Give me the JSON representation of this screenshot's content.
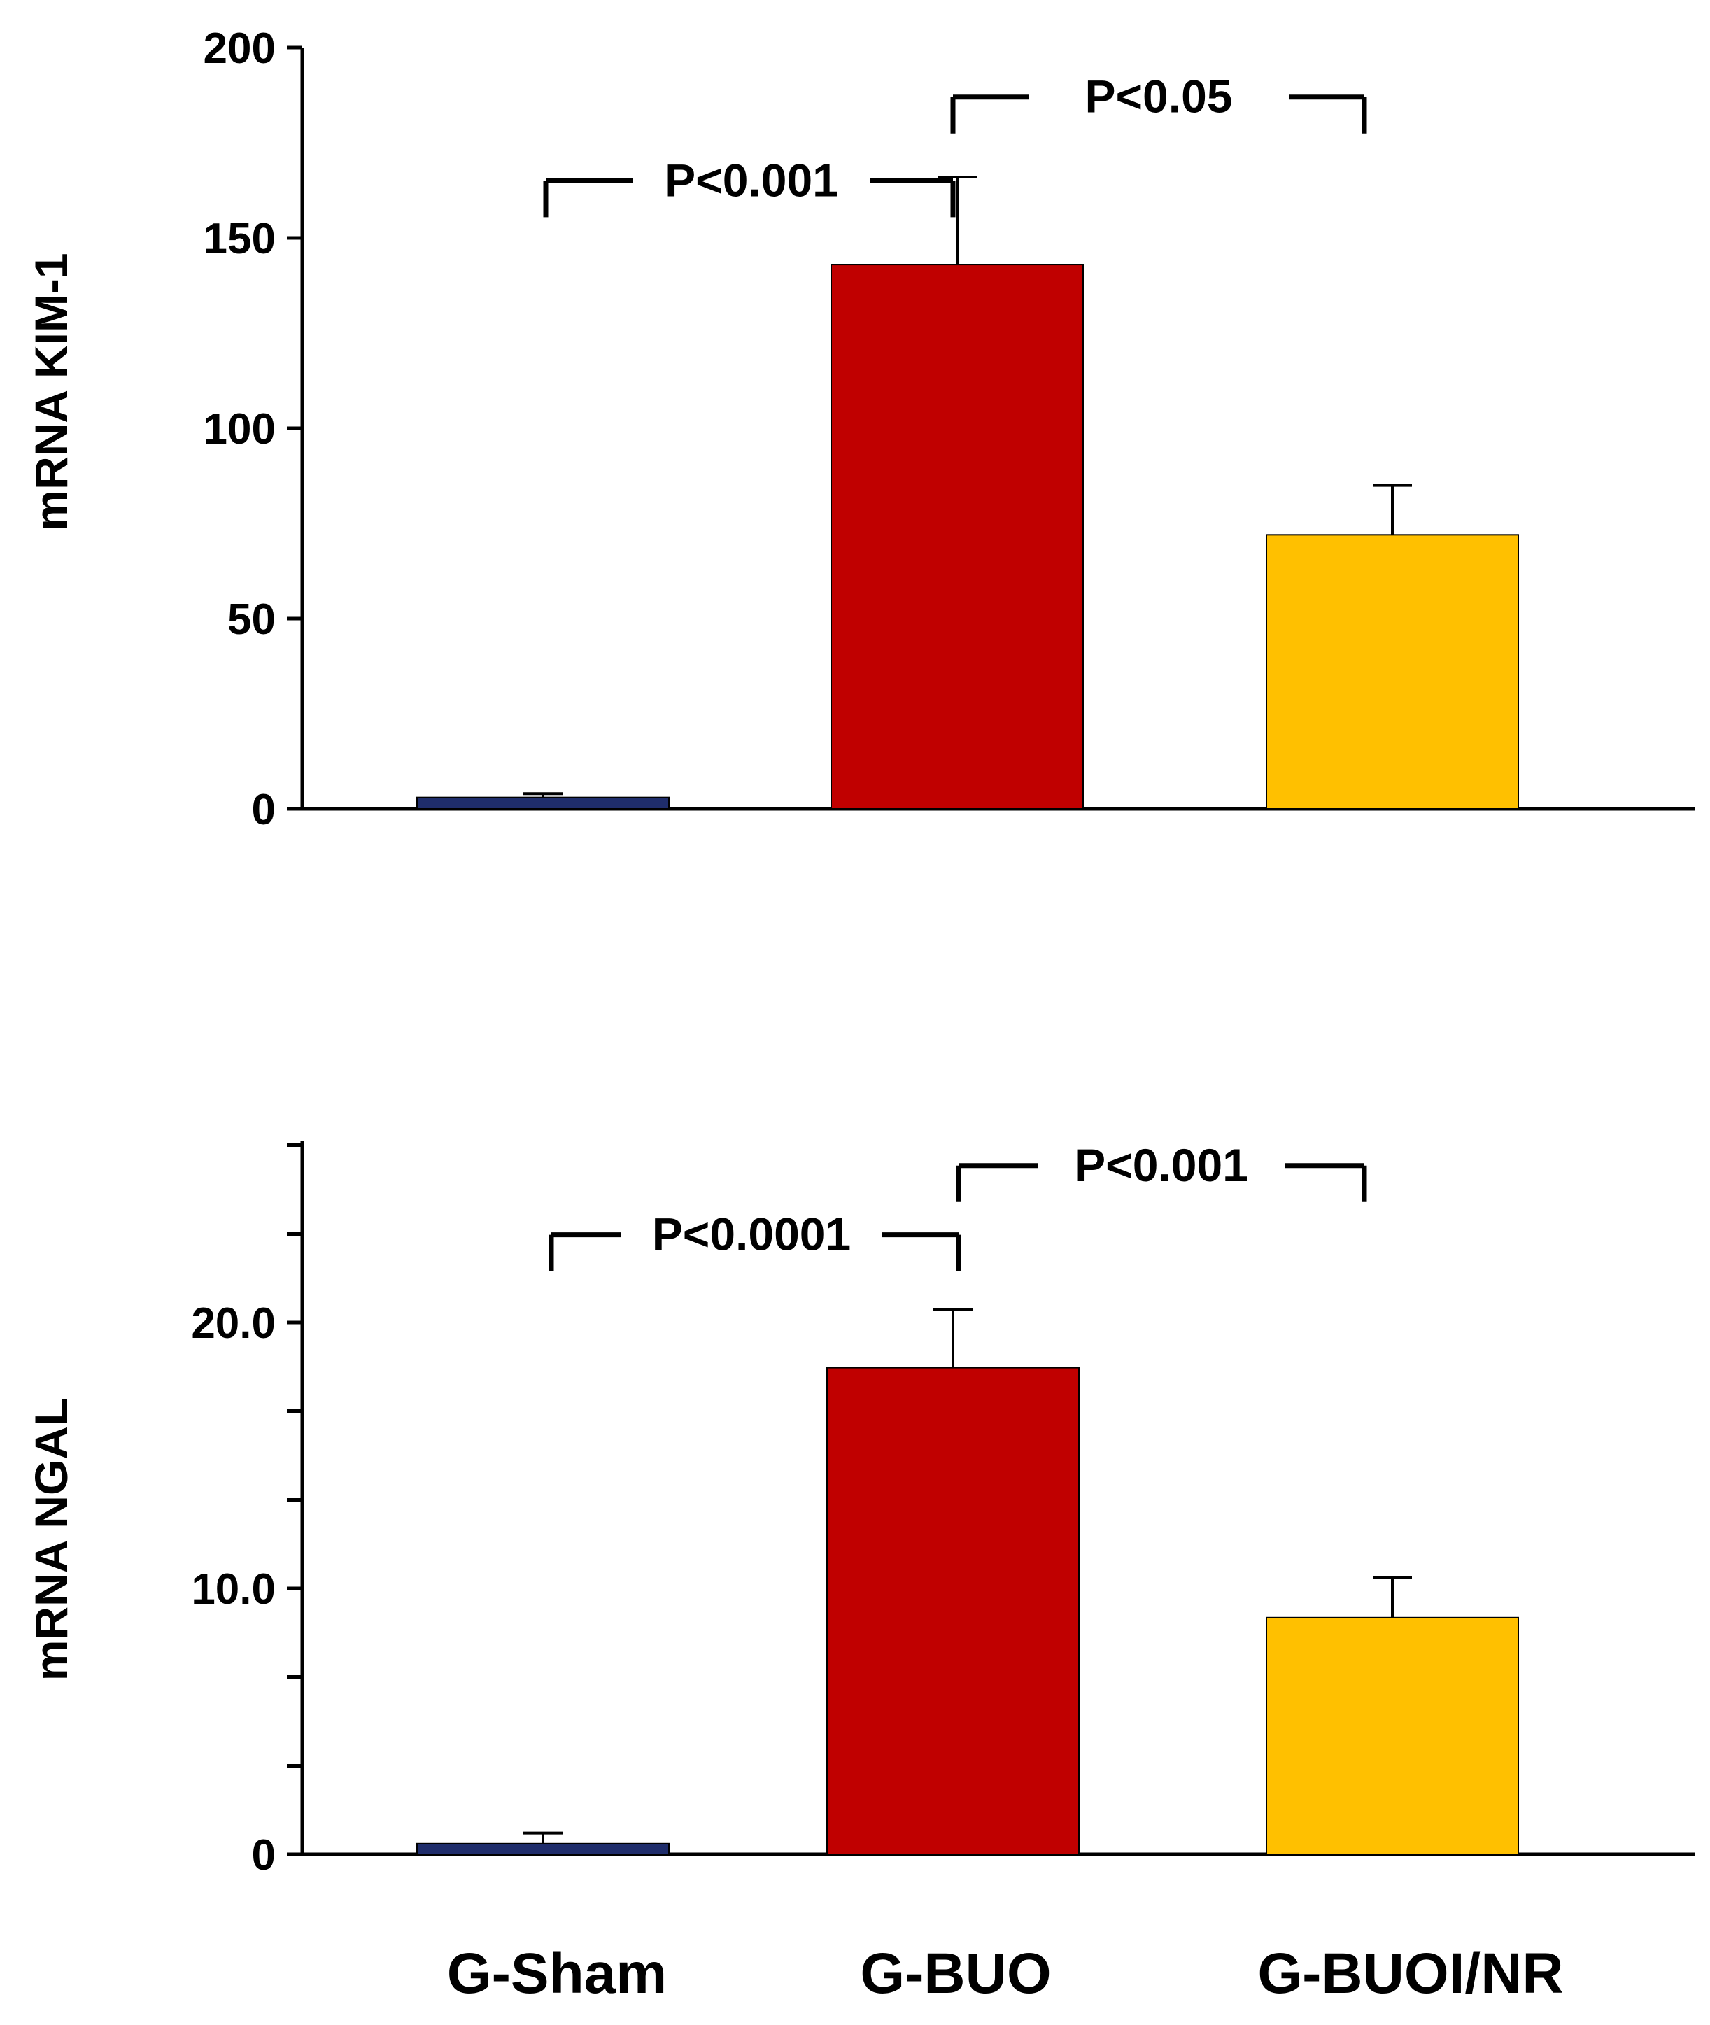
{
  "chart_data": [
    {
      "type": "bar",
      "ylabel": "mRNA KIM-1",
      "ylim": [
        0,
        200
      ],
      "yticks": [
        0,
        50,
        100,
        150,
        200
      ],
      "ytick_labels": [
        "0",
        "50",
        "100",
        "150",
        "200"
      ],
      "categories": [
        "G-Sham",
        "G-BUO",
        "G-BUOI/NR"
      ],
      "values": [
        3,
        143,
        72
      ],
      "errors": [
        1,
        23,
        13
      ],
      "colors": [
        "#1f2d6b",
        "#c00000",
        "#ffc000"
      ],
      "significance": [
        {
          "from": 0,
          "to": 1,
          "label": "P<0.001",
          "level": 165
        },
        {
          "from": 1,
          "to": 2,
          "label": "P<0.05",
          "level": 187
        }
      ]
    },
    {
      "type": "bar",
      "ylabel": "mRNA NGAL",
      "ylim": [
        0,
        26
      ],
      "yticks": [
        0,
        3.33,
        6.67,
        10,
        13.33,
        16.67,
        20,
        23.33,
        26.67
      ],
      "ytick_labels": [
        "0",
        "",
        "",
        "10.0",
        "",
        "",
        "20.0",
        "",
        ""
      ],
      "categories": [
        "G-Sham",
        "G-BUO",
        "G-BUOI/NR"
      ],
      "values": [
        0.4,
        18.3,
        8.9
      ],
      "errors": [
        0.4,
        2.2,
        1.5
      ],
      "colors": [
        "#1f2d6b",
        "#c00000",
        "#ffc000"
      ],
      "significance": [
        {
          "from": 0,
          "to": 1,
          "label": "P<0.0001",
          "level": 23.3
        },
        {
          "from": 1,
          "to": 2,
          "label": "P<0.001",
          "level": 25.9
        }
      ]
    }
  ],
  "x_categories": [
    "G-Sham",
    "G-BUO",
    "G-BUOI/NR"
  ]
}
